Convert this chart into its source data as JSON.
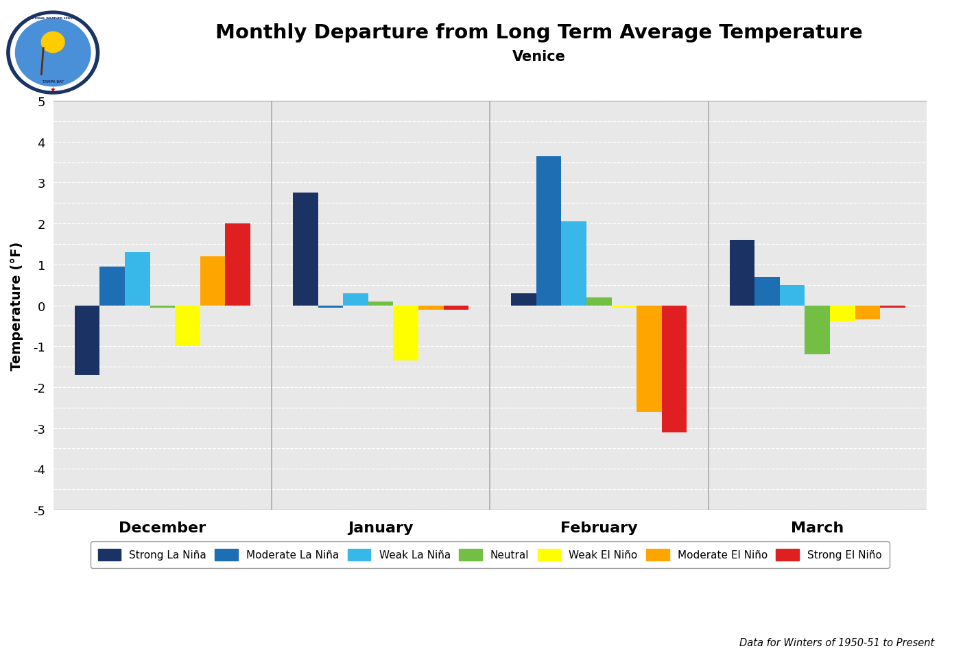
{
  "title": "Monthly Departure from Long Term Average Temperature",
  "subtitle": "Venice",
  "ylabel": "Temperature (°F)",
  "footnote": "Data for Winters of 1950-51 to Present",
  "months": [
    "December",
    "January",
    "February",
    "March"
  ],
  "categories": [
    "Strong La Niña",
    "Moderate La Niña",
    "Weak La Niña",
    "Neutral",
    "Weak El Niño",
    "Moderate El Niño",
    "Strong El Niño"
  ],
  "colors": [
    "#1a3264",
    "#1e6eb4",
    "#38b8e8",
    "#72bf44",
    "#ffff00",
    "#ffa500",
    "#e02020"
  ],
  "values": {
    "December": [
      -1.7,
      0.95,
      1.3,
      -0.05,
      -1.0,
      1.2,
      2.0
    ],
    "January": [
      2.75,
      -0.05,
      0.3,
      0.1,
      -1.35,
      -0.1,
      -0.1
    ],
    "February": [
      0.3,
      3.65,
      2.05,
      0.2,
      -0.05,
      -2.6,
      -3.1
    ],
    "March": [
      1.6,
      0.7,
      0.5,
      -1.2,
      -0.4,
      -0.35,
      -0.05
    ]
  },
  "ylim": [
    -5,
    5
  ],
  "yticks": [
    -5,
    -4.5,
    -4,
    -3.5,
    -3,
    -2.5,
    -2,
    -1.5,
    -1,
    -0.5,
    0,
    0.5,
    1,
    1.5,
    2,
    2.5,
    3,
    3.5,
    4,
    4.5,
    5
  ],
  "ytick_labels": [
    "-5",
    "",
    "-4",
    "",
    "-3",
    "",
    "-2",
    "",
    "-1",
    "",
    "0",
    "",
    "1",
    "",
    "2",
    "",
    "3",
    "",
    "4",
    "",
    "5"
  ],
  "fig_bg_color": "#ffffff",
  "plot_bg_color": "#e8e8e8",
  "grid_color": "#ffffff",
  "bar_width": 0.115,
  "group_width": 1.0,
  "n_groups": 4
}
